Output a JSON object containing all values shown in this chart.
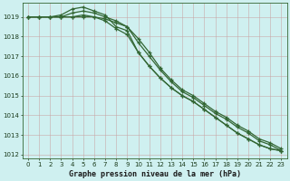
{
  "title": "Graphe pression niveau de la mer (hPa)",
  "bg_color": "#cff0f0",
  "grid_color": "#c8a0a0",
  "line_color": "#336633",
  "marker": "+",
  "xlim_min": -0.5,
  "xlim_max": 23.5,
  "ylim_min": 1011.8,
  "ylim_max": 1019.7,
  "yticks": [
    1012,
    1013,
    1014,
    1015,
    1016,
    1017,
    1018,
    1019
  ],
  "xticks": [
    0,
    1,
    2,
    3,
    4,
    5,
    6,
    7,
    8,
    9,
    10,
    11,
    12,
    13,
    14,
    15,
    16,
    17,
    18,
    19,
    20,
    21,
    22,
    23
  ],
  "series": [
    [
      1019.0,
      1019.0,
      1019.0,
      1019.1,
      1019.4,
      1019.5,
      1019.3,
      1019.1,
      1018.5,
      1018.3,
      1017.2,
      1016.5,
      1015.9,
      1015.4,
      1015.0,
      1014.7,
      1014.3,
      1013.9,
      1013.5,
      1013.1,
      1012.8,
      1012.5,
      1012.3,
      1012.2
    ],
    [
      1019.0,
      1019.0,
      1019.0,
      1019.0,
      1019.0,
      1019.0,
      1019.0,
      1018.8,
      1018.4,
      1018.1,
      1017.2,
      1016.5,
      1015.9,
      1015.4,
      1015.0,
      1014.7,
      1014.3,
      1013.9,
      1013.5,
      1013.1,
      1012.8,
      1012.5,
      1012.3,
      1012.2
    ],
    [
      1019.0,
      1019.0,
      1019.0,
      1019.0,
      1019.2,
      1019.3,
      1019.2,
      1019.0,
      1018.8,
      1018.5,
      1017.7,
      1017.0,
      1016.3,
      1015.7,
      1015.2,
      1014.9,
      1014.5,
      1014.1,
      1013.8,
      1013.4,
      1013.1,
      1012.7,
      1012.5,
      1012.2
    ],
    [
      1019.0,
      1019.0,
      1019.0,
      1019.0,
      1019.0,
      1019.1,
      1019.0,
      1018.9,
      1018.7,
      1018.5,
      1017.9,
      1017.2,
      1016.4,
      1015.8,
      1015.3,
      1015.0,
      1014.6,
      1014.2,
      1013.9,
      1013.5,
      1013.2,
      1012.8,
      1012.6,
      1012.3
    ]
  ],
  "title_fontsize": 6.0,
  "tick_fontsize": 5.0,
  "linewidth": 0.9,
  "markersize": 3.0
}
